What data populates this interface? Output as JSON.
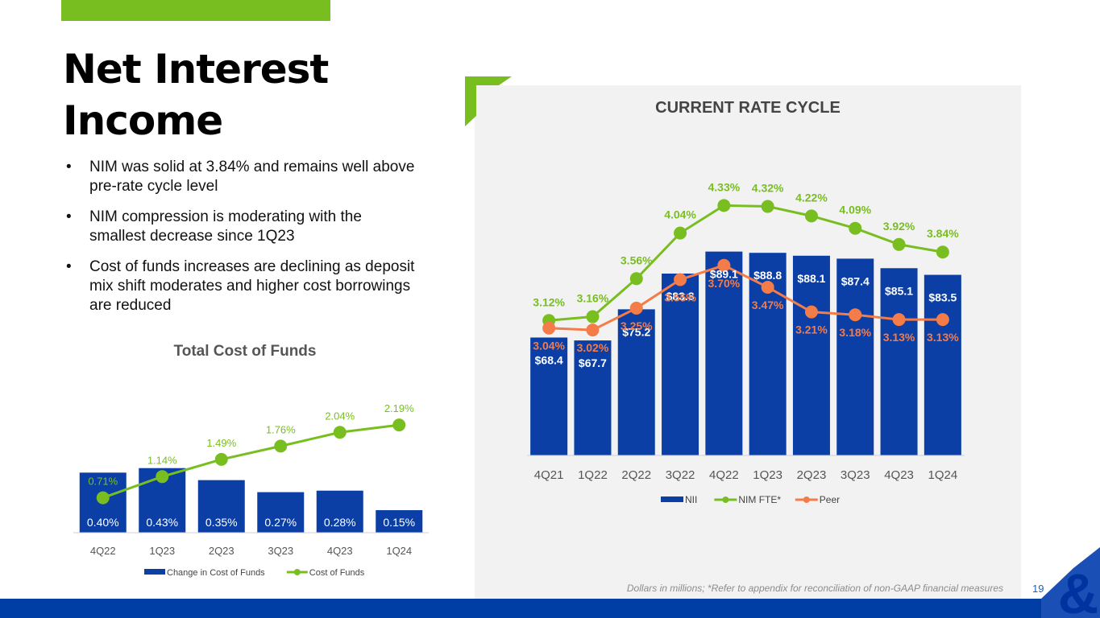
{
  "page": {
    "title": "Net Interest Income",
    "bullets": [
      "NIM was solid at 3.84% and remains well above pre-rate cycle level",
      "NIM compression is moderating with the smallest decrease since 1Q23",
      "Cost of funds increases are declining as deposit mix shift moderates and higher cost borrowings are reduced"
    ],
    "footnote": "Dollars in millions; *Refer to appendix for reconciliation of non-GAAP financial measures",
    "page_number": "19"
  },
  "colors": {
    "accent_green": "#78be20",
    "bar_blue": "#0b3fa6",
    "peer_orange": "#f47c48",
    "footer_blue": "#003ea5",
    "panel_gray": "#f2f2f2"
  },
  "chart_data": [
    {
      "id": "total-cost-of-funds",
      "type": "bar",
      "title": "Total Cost of Funds",
      "categories": [
        "4Q22",
        "1Q23",
        "2Q23",
        "3Q23",
        "4Q23",
        "1Q24"
      ],
      "series": [
        {
          "name": "Change in Cost of Funds",
          "kind": "bar",
          "values": [
            0.4,
            0.43,
            0.35,
            0.27,
            0.28,
            0.15
          ],
          "labels": [
            "0.40%",
            "0.43%",
            "0.35%",
            "0.27%",
            "0.28%",
            "0.15%"
          ]
        },
        {
          "name": "Cost of Funds",
          "kind": "line",
          "values": [
            0.71,
            1.14,
            1.49,
            1.76,
            2.04,
            2.19
          ],
          "labels": [
            "0.71%",
            "1.14%",
            "1.49%",
            "1.76%",
            "2.04%",
            "2.19%"
          ]
        }
      ],
      "bar_ylim": [
        0,
        1.2
      ],
      "line_ylim": [
        0,
        3.5
      ],
      "legend": "bottom"
    },
    {
      "id": "current-rate-cycle",
      "type": "bar",
      "title": "CURRENT RATE CYCLE",
      "categories": [
        "4Q21",
        "1Q22",
        "2Q22",
        "3Q22",
        "4Q22",
        "1Q23",
        "2Q23",
        "3Q23",
        "4Q23",
        "1Q24"
      ],
      "series": [
        {
          "name": "NII",
          "kind": "bar",
          "values": [
            68.4,
            67.7,
            75.2,
            83.8,
            89.1,
            88.8,
            88.1,
            87.4,
            85.1,
            83.5
          ],
          "labels": [
            "$68.4",
            "$67.7",
            "$75.2",
            "$83.8",
            "$89.1",
            "$88.8",
            "$88.1",
            "$87.4",
            "$85.1",
            "$83.5"
          ]
        },
        {
          "name": "NIM FTE*",
          "kind": "line",
          "values": [
            3.12,
            3.16,
            3.56,
            4.04,
            4.33,
            4.32,
            4.22,
            4.09,
            3.92,
            3.84
          ],
          "labels": [
            "3.12%",
            "3.16%",
            "3.56%",
            "4.04%",
            "4.33%",
            "4.32%",
            "4.22%",
            "4.09%",
            "3.92%",
            "3.84%"
          ]
        },
        {
          "name": "Peer",
          "kind": "line",
          "values": [
            3.04,
            3.02,
            3.25,
            3.55,
            3.7,
            3.47,
            3.21,
            3.18,
            3.13,
            3.13
          ],
          "labels": [
            "3.04%",
            "3.02%",
            "3.25%",
            "3.55%",
            "3.70%",
            "3.47%",
            "3.21%",
            "3.18%",
            "3.13%",
            "3.13%"
          ]
        }
      ],
      "bar_ylim": [
        40,
        90
      ],
      "line_ylim": [
        1.7,
        4.35
      ],
      "legend": "bottom"
    }
  ]
}
